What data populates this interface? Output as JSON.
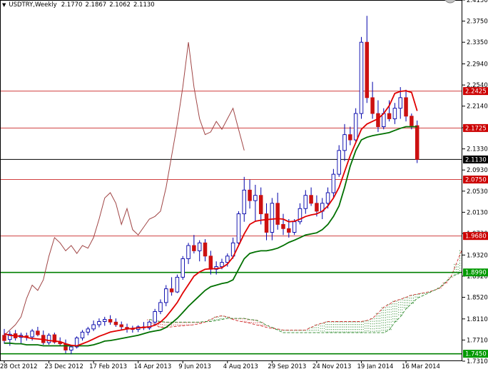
{
  "header": {
    "symbol": "USDTRY,Weekly",
    "open": "2.1770",
    "high": "2.1867",
    "low": "2.1062",
    "close": "2.1130",
    "arrow_icon": "triangle-down-icon"
  },
  "top_right_icon": "circle-icon",
  "colors": {
    "background": "#ffffff",
    "bull_candle": "#ffffff",
    "bear_candle": "#cc1111",
    "candle_outline": "#0000aa",
    "tenkan": "#e00000",
    "kijun": "#007000",
    "chikou": "#a04545",
    "kumo_bull": "#2e8b2e",
    "kumo_bear": "#d03030",
    "hline_red": "#d04040",
    "hline_green": "#008000",
    "price_line": "#000000",
    "label_red": "#cc0000",
    "label_green": "#009900",
    "label_black": "#000000"
  },
  "chart_data": {
    "type": "candlestick",
    "symbol": "USDTRY",
    "timeframe": "Weekly",
    "ylim": [
      1.731,
      2.415
    ],
    "y_ticks": [
      "2.4150",
      "2.3750",
      "2.3350",
      "2.2940",
      "2.2540",
      "2.2140",
      "2.1730",
      "2.1330",
      "2.0930",
      "2.0530",
      "2.0130",
      "1.9730",
      "1.9320",
      "1.8920",
      "1.8520",
      "1.8110",
      "1.7710",
      "1.7310"
    ],
    "x_tick_labels": [
      {
        "label": "28 Oct 2012",
        "week": 0
      },
      {
        "label": "23 Dec 2012",
        "week": 8
      },
      {
        "label": "17 Feb 2013",
        "week": 16
      },
      {
        "label": "14 Apr 2013",
        "week": 24
      },
      {
        "label": "9 Jun 2013",
        "week": 32
      },
      {
        "label": "4 Aug 2013",
        "week": 40
      },
      {
        "label": "29 Sep 2013",
        "week": 48
      },
      {
        "label": "24 Nov 2013",
        "week": 56
      },
      {
        "label": "19 Jan 2014",
        "week": 64
      },
      {
        "label": "16 Mar 2014",
        "week": 72
      }
    ],
    "n_weeks": 75,
    "candles": [
      [
        1.78,
        1.792,
        1.764,
        1.77
      ],
      [
        1.772,
        1.788,
        1.76,
        1.782
      ],
      [
        1.783,
        1.79,
        1.77,
        1.775
      ],
      [
        1.776,
        1.785,
        1.765,
        1.78
      ],
      [
        1.779,
        1.785,
        1.77,
        1.776
      ],
      [
        1.777,
        1.792,
        1.77,
        1.788
      ],
      [
        1.788,
        1.796,
        1.778,
        1.781
      ],
      [
        1.78,
        1.789,
        1.762,
        1.766
      ],
      [
        1.766,
        1.784,
        1.762,
        1.78
      ],
      [
        1.781,
        1.785,
        1.764,
        1.767
      ],
      [
        1.767,
        1.776,
        1.76,
        1.764
      ],
      [
        1.763,
        1.772,
        1.746,
        1.752
      ],
      [
        1.752,
        1.762,
        1.744,
        1.758
      ],
      [
        1.758,
        1.778,
        1.755,
        1.775
      ],
      [
        1.775,
        1.79,
        1.77,
        1.786
      ],
      [
        1.786,
        1.796,
        1.78,
        1.792
      ],
      [
        1.792,
        1.808,
        1.788,
        1.8
      ],
      [
        1.8,
        1.812,
        1.795,
        1.806
      ],
      [
        1.806,
        1.815,
        1.798,
        1.81
      ],
      [
        1.81,
        1.818,
        1.8,
        1.805
      ],
      [
        1.805,
        1.812,
        1.796,
        1.8
      ],
      [
        1.8,
        1.806,
        1.79,
        1.796
      ],
      [
        1.795,
        1.802,
        1.785,
        1.793
      ],
      [
        1.793,
        1.798,
        1.785,
        1.791
      ],
      [
        1.791,
        1.799,
        1.786,
        1.796
      ],
      [
        1.796,
        1.805,
        1.79,
        1.794
      ],
      [
        1.794,
        1.808,
        1.79,
        1.805
      ],
      [
        1.805,
        1.83,
        1.8,
        1.825
      ],
      [
        1.825,
        1.848,
        1.82,
        1.842
      ],
      [
        1.842,
        1.875,
        1.835,
        1.868
      ],
      [
        1.868,
        1.89,
        1.855,
        1.862
      ],
      [
        1.862,
        1.895,
        1.86,
        1.89
      ],
      [
        1.89,
        1.93,
        1.885,
        1.925
      ],
      [
        1.925,
        1.955,
        1.915,
        1.95
      ],
      [
        1.95,
        1.97,
        1.935,
        1.94
      ],
      [
        1.94,
        1.96,
        1.92,
        1.955
      ],
      [
        1.955,
        1.962,
        1.92,
        1.93
      ],
      [
        1.93,
        1.94,
        1.895,
        1.905
      ],
      [
        1.905,
        1.92,
        1.895,
        1.91
      ],
      [
        1.91,
        1.925,
        1.905,
        1.918
      ],
      [
        1.918,
        1.935,
        1.91,
        1.93
      ],
      [
        1.93,
        1.965,
        1.925,
        1.955
      ],
      [
        1.955,
        2.015,
        1.95,
        2.01
      ],
      [
        2.01,
        2.08,
        1.995,
        2.055
      ],
      [
        2.055,
        2.075,
        2.02,
        2.035
      ],
      [
        2.035,
        2.065,
        1.995,
        2.045
      ],
      [
        2.045,
        2.06,
        1.99,
        2.01
      ],
      [
        2.01,
        2.03,
        1.96,
        1.975
      ],
      [
        1.975,
        2.04,
        1.96,
        2.03
      ],
      [
        2.03,
        2.05,
        1.98,
        1.99
      ],
      [
        1.99,
        2.01,
        1.97,
        1.982
      ],
      [
        1.982,
        2.0,
        1.965,
        1.975
      ],
      [
        1.975,
        2.0,
        1.97,
        1.995
      ],
      [
        1.995,
        2.03,
        1.99,
        2.02
      ],
      [
        2.02,
        2.055,
        2.01,
        2.045
      ],
      [
        2.045,
        2.06,
        2.025,
        2.03
      ],
      [
        2.03,
        2.045,
        2.005,
        2.015
      ],
      [
        2.015,
        2.04,
        2.0,
        2.03
      ],
      [
        2.03,
        2.06,
        2.02,
        2.05
      ],
      [
        2.05,
        2.095,
        2.04,
        2.085
      ],
      [
        2.085,
        2.14,
        2.08,
        2.13
      ],
      [
        2.13,
        2.18,
        2.11,
        2.16
      ],
      [
        2.16,
        2.175,
        2.14,
        2.15
      ],
      [
        2.15,
        2.21,
        2.145,
        2.2
      ],
      [
        2.2,
        2.345,
        2.19,
        2.335
      ],
      [
        2.335,
        2.385,
        2.22,
        2.23
      ],
      [
        2.23,
        2.26,
        2.19,
        2.2
      ],
      [
        2.2,
        2.225,
        2.165,
        2.175
      ],
      [
        2.175,
        2.21,
        2.17,
        2.2
      ],
      [
        2.2,
        2.225,
        2.185,
        2.19
      ],
      [
        2.19,
        2.22,
        2.18,
        2.21
      ],
      [
        2.21,
        2.25,
        2.19,
        2.23
      ],
      [
        2.23,
        2.245,
        2.185,
        2.195
      ],
      [
        2.195,
        2.2,
        2.17,
        2.177
      ],
      [
        2.177,
        2.1867,
        2.1062,
        2.113
      ]
    ],
    "ichimoku": {
      "tenkan": [
        1.783,
        1.78,
        1.779,
        1.778,
        1.776,
        1.774,
        1.773,
        1.772,
        1.77,
        1.769,
        1.768,
        1.764,
        1.761,
        1.76,
        1.764,
        1.768,
        1.773,
        1.778,
        1.782,
        1.786,
        1.788,
        1.79,
        1.792,
        1.793,
        1.794,
        1.795,
        1.796,
        1.799,
        1.805,
        1.815,
        1.828,
        1.842,
        1.86,
        1.876,
        1.892,
        1.9,
        1.905,
        1.906,
        1.906,
        1.908,
        1.915,
        1.928,
        1.95,
        1.972,
        1.99,
        1.996,
        1.998,
        1.999,
        2.0,
        2.001,
        2.0,
        1.995,
        1.996,
        2.0,
        2.005,
        2.008,
        2.01,
        2.015,
        2.025,
        2.04,
        2.06,
        2.09,
        2.12,
        2.145,
        2.17,
        2.18,
        2.185,
        2.19,
        2.2,
        2.215,
        2.238,
        2.242,
        2.243,
        2.24,
        2.205
      ],
      "kijun": [
        1.765,
        1.765,
        1.764,
        1.764,
        1.762,
        1.762,
        1.762,
        1.76,
        1.76,
        1.76,
        1.76,
        1.76,
        1.76,
        1.76,
        1.76,
        1.76,
        1.762,
        1.765,
        1.769,
        1.77,
        1.772,
        1.774,
        1.776,
        1.778,
        1.78,
        1.783,
        1.786,
        1.788,
        1.79,
        1.795,
        1.803,
        1.812,
        1.823,
        1.835,
        1.845,
        1.855,
        1.865,
        1.872,
        1.875,
        1.878,
        1.88,
        1.885,
        1.905,
        1.925,
        1.935,
        1.938,
        1.94,
        1.94,
        1.942,
        1.945,
        1.95,
        1.956,
        1.96,
        1.965,
        1.97,
        1.972,
        1.974,
        1.98,
        1.99,
        2.005,
        2.025,
        2.06,
        2.1,
        2.13,
        2.15,
        2.155,
        2.158,
        2.16,
        2.162,
        2.164,
        2.168,
        2.172,
        2.175,
        2.175,
        2.175
      ],
      "chikou": [
        1.78,
        1.79,
        1.8,
        1.815,
        1.85,
        1.875,
        1.865,
        1.885,
        1.93,
        1.965,
        1.955,
        1.94,
        1.95,
        1.935,
        1.95,
        1.945,
        1.965,
        2.0,
        2.04,
        2.05,
        2.03,
        1.99,
        2.02,
        1.98,
        1.97,
        1.985,
        2.0,
        2.005,
        2.015,
        2.06,
        2.12,
        2.18,
        2.25,
        2.335,
        2.25,
        2.19,
        2.16,
        2.165,
        2.185,
        2.17,
        2.19,
        2.21,
        2.17,
        2.13
      ],
      "senkou_a": [
        1.805,
        1.8,
        1.795,
        1.795,
        1.796,
        1.797,
        1.798,
        1.799,
        1.8,
        1.802,
        1.805,
        1.81,
        1.815,
        1.817,
        1.815,
        1.81,
        1.807,
        1.805,
        1.803,
        1.8,
        1.798,
        1.795,
        1.793,
        1.792,
        1.79,
        1.79,
        1.79,
        1.79,
        1.79,
        1.795,
        1.8,
        1.803,
        1.806,
        1.806,
        1.806,
        1.806,
        1.806,
        1.806,
        1.806,
        1.808,
        1.812,
        1.822,
        1.833,
        1.839,
        1.845,
        1.848,
        1.852,
        1.856,
        1.858,
        1.86,
        1.862,
        1.865,
        1.869,
        1.878,
        1.889,
        1.915,
        1.941,
        1.954,
        1.959,
        1.963,
        1.965,
        1.966,
        1.968,
        1.97,
        1.97,
        1.971,
        1.972,
        1.975,
        1.98,
        1.99,
        2.01,
        2.04,
        2.07,
        2.11,
        2.15,
        2.19
      ],
      "senkou_b": [
        1.81,
        1.808,
        1.806,
        1.805,
        1.805,
        1.805,
        1.805,
        1.805,
        1.805,
        1.805,
        1.806,
        1.806,
        1.808,
        1.81,
        1.812,
        1.812,
        1.812,
        1.812,
        1.81,
        1.809,
        1.805,
        1.799,
        1.795,
        1.79,
        1.785,
        1.785,
        1.785,
        1.785,
        1.785,
        1.785,
        1.785,
        1.785,
        1.785,
        1.785,
        1.785,
        1.785,
        1.785,
        1.785,
        1.785,
        1.785,
        1.785,
        1.785,
        1.785,
        1.79,
        1.805,
        1.815,
        1.83,
        1.84,
        1.85,
        1.855,
        1.86,
        1.865,
        1.87,
        1.88,
        1.89,
        1.895,
        1.9,
        1.9,
        1.9,
        1.9,
        1.9,
        1.9,
        1.9,
        1.9,
        1.9,
        1.9,
        1.9,
        1.9,
        1.9,
        1.91,
        1.93,
        1.95,
        1.98,
        2.03,
        2.06,
        2.07
      ]
    },
    "h_lines": [
      {
        "value": 2.2425,
        "label": "2.2425",
        "color": "red"
      },
      {
        "value": 2.1725,
        "label": "2.1725",
        "color": "red"
      },
      {
        "value": 2.113,
        "label": "2.1130",
        "color": "black"
      },
      {
        "value": 2.075,
        "label": "2.0750",
        "color": "red"
      },
      {
        "value": 1.968,
        "label": "1.9680",
        "color": "red"
      },
      {
        "value": 1.899,
        "label": "1.8990",
        "color": "green"
      },
      {
        "value": 1.745,
        "label": "1.7450",
        "color": "green"
      }
    ]
  }
}
